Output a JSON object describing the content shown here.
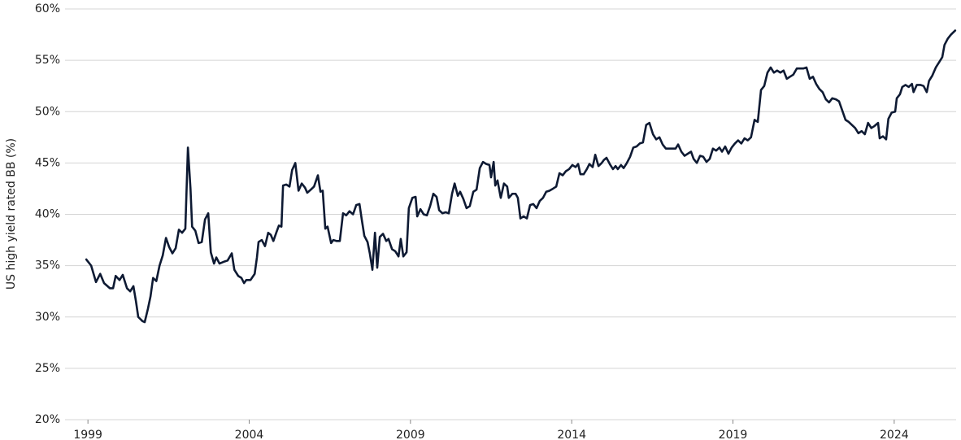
{
  "chart_data": {
    "type": "line",
    "y_label": "US high yield rated BB (%)",
    "color": "#0e1a33",
    "grid": true,
    "xlim": [
      1998.29,
      2025.92
    ],
    "xticks": [
      1999,
      2004,
      2009,
      2014,
      2019,
      2024
    ],
    "ylim": [
      20,
      60
    ],
    "yticks": [
      {
        "value": 20,
        "label": "20%"
      },
      {
        "value": 25,
        "label": "25%"
      },
      {
        "value": 30,
        "label": "30%"
      },
      {
        "value": 35,
        "label": "35%"
      },
      {
        "value": 40,
        "label": "40%"
      },
      {
        "value": 45,
        "label": "45%"
      },
      {
        "value": 50,
        "label": "50%"
      },
      {
        "value": 55,
        "label": "55%"
      },
      {
        "value": 60,
        "label": "60%"
      }
    ],
    "x": [
      1998.95,
      1999.1,
      1999.25,
      1999.38,
      1999.5,
      1999.68,
      1999.78,
      1999.86,
      1999.98,
      2000.08,
      2000.21,
      2000.31,
      2000.41,
      2000.49,
      2000.56,
      2000.69,
      2000.76,
      2000.86,
      2000.94,
      2001.02,
      2001.12,
      2001.22,
      2001.32,
      2001.42,
      2001.52,
      2001.62,
      2001.72,
      2001.82,
      2001.92,
      2002.02,
      2002.1,
      2002.18,
      2002.23,
      2002.33,
      2002.43,
      2002.53,
      2002.63,
      2002.73,
      2002.81,
      2002.91,
      2002.98,
      2003.08,
      2003.23,
      2003.33,
      2003.46,
      2003.54,
      2003.66,
      2003.76,
      2003.84,
      2003.91,
      2004.04,
      2004.17,
      2004.24,
      2004.29,
      2004.39,
      2004.49,
      2004.59,
      2004.67,
      2004.75,
      2004.85,
      2004.92,
      2005.0,
      2005.05,
      2005.15,
      2005.25,
      2005.33,
      2005.43,
      2005.53,
      2005.63,
      2005.73,
      2005.8,
      2005.91,
      2006.01,
      2006.13,
      2006.21,
      2006.28,
      2006.36,
      2006.43,
      2006.54,
      2006.61,
      2006.71,
      2006.81,
      2006.91,
      2007.01,
      2007.11,
      2007.22,
      2007.32,
      2007.42,
      2007.49,
      2007.57,
      2007.67,
      2007.74,
      2007.82,
      2007.9,
      2007.97,
      2008.05,
      2008.15,
      2008.25,
      2008.32,
      2008.43,
      2008.53,
      2008.63,
      2008.7,
      2008.78,
      2008.88,
      2008.95,
      2009.06,
      2009.16,
      2009.21,
      2009.31,
      2009.41,
      2009.51,
      2009.61,
      2009.71,
      2009.81,
      2009.89,
      2009.99,
      2010.09,
      2010.19,
      2010.29,
      2010.37,
      2010.47,
      2010.54,
      2010.64,
      2010.74,
      2010.84,
      2010.95,
      2011.05,
      2011.15,
      2011.25,
      2011.35,
      2011.45,
      2011.5,
      2011.58,
      2011.63,
      2011.7,
      2011.8,
      2011.9,
      2012.0,
      2012.05,
      2012.16,
      2012.26,
      2012.33,
      2012.41,
      2012.51,
      2012.61,
      2012.71,
      2012.81,
      2012.91,
      2013.01,
      2013.11,
      2013.21,
      2013.31,
      2013.42,
      2013.52,
      2013.62,
      2013.72,
      2013.82,
      2013.92,
      2014.02,
      2014.12,
      2014.2,
      2014.27,
      2014.37,
      2014.47,
      2014.55,
      2014.65,
      2014.73,
      2014.83,
      2014.93,
      2015.0,
      2015.08,
      2015.18,
      2015.28,
      2015.36,
      2015.43,
      2015.53,
      2015.61,
      2015.71,
      2015.81,
      2015.91,
      2016.01,
      2016.11,
      2016.21,
      2016.31,
      2016.41,
      2016.52,
      2016.62,
      2016.72,
      2016.82,
      2016.92,
      2017.02,
      2017.12,
      2017.22,
      2017.3,
      2017.4,
      2017.5,
      2017.6,
      2017.7,
      2017.78,
      2017.88,
      2017.98,
      2018.08,
      2018.18,
      2018.28,
      2018.38,
      2018.48,
      2018.58,
      2018.66,
      2018.76,
      2018.86,
      2018.96,
      2019.06,
      2019.16,
      2019.26,
      2019.36,
      2019.46,
      2019.56,
      2019.67,
      2019.77,
      2019.87,
      2019.97,
      2020.07,
      2020.17,
      2020.27,
      2020.37,
      2020.47,
      2020.57,
      2020.67,
      2020.77,
      2020.87,
      2020.98,
      2021.08,
      2021.18,
      2021.28,
      2021.38,
      2021.48,
      2021.58,
      2021.68,
      2021.78,
      2021.88,
      2021.98,
      2022.08,
      2022.19,
      2022.29,
      2022.39,
      2022.49,
      2022.59,
      2022.69,
      2022.79,
      2022.89,
      2022.99,
      2023.09,
      2023.19,
      2023.29,
      2023.39,
      2023.5,
      2023.55,
      2023.65,
      2023.75,
      2023.82,
      2023.92,
      2024.03,
      2024.08,
      2024.18,
      2024.25,
      2024.35,
      2024.45,
      2024.55,
      2024.6,
      2024.7,
      2024.81,
      2024.91,
      2025.01,
      2025.08,
      2025.18,
      2025.29,
      2025.39,
      2025.49,
      2025.56,
      2025.66,
      2025.76,
      2025.89
    ],
    "values": [
      35.6,
      35.0,
      33.4,
      34.2,
      33.3,
      32.8,
      32.8,
      34.0,
      33.6,
      34.1,
      32.8,
      32.5,
      33.0,
      31.5,
      30.0,
      29.6,
      29.5,
      30.8,
      32.0,
      33.8,
      33.5,
      35.0,
      36.0,
      37.7,
      36.8,
      36.2,
      36.7,
      38.5,
      38.2,
      38.6,
      46.5,
      42.5,
      38.8,
      38.4,
      37.2,
      37.3,
      39.5,
      40.1,
      36.3,
      35.2,
      35.8,
      35.2,
      35.4,
      35.5,
      36.2,
      34.6,
      34.0,
      33.8,
      33.3,
      33.6,
      33.6,
      34.2,
      35.8,
      37.3,
      37.5,
      36.9,
      38.2,
      38.0,
      37.4,
      38.3,
      38.9,
      38.8,
      42.8,
      42.9,
      42.7,
      44.3,
      45.0,
      42.3,
      43.0,
      42.6,
      42.1,
      42.4,
      42.7,
      43.8,
      42.2,
      42.3,
      38.6,
      38.8,
      37.2,
      37.5,
      37.4,
      37.4,
      40.1,
      39.9,
      40.3,
      40.0,
      40.9,
      41.0,
      39.5,
      37.9,
      37.3,
      36.2,
      34.6,
      38.2,
      34.8,
      37.8,
      38.1,
      37.4,
      37.6,
      36.6,
      36.4,
      35.9,
      37.6,
      35.9,
      36.3,
      40.6,
      41.6,
      41.7,
      39.8,
      40.5,
      40.0,
      39.9,
      40.8,
      42.0,
      41.7,
      40.4,
      40.1,
      40.2,
      40.1,
      42.0,
      43.0,
      41.8,
      42.2,
      41.5,
      40.6,
      40.8,
      42.2,
      42.4,
      44.5,
      45.1,
      44.9,
      44.8,
      43.6,
      45.1,
      42.8,
      43.3,
      41.6,
      43.0,
      42.7,
      41.6,
      42.0,
      42.0,
      41.6,
      39.6,
      39.8,
      39.6,
      40.9,
      41.0,
      40.6,
      41.3,
      41.6,
      42.2,
      42.3,
      42.5,
      42.7,
      44.0,
      43.8,
      44.2,
      44.4,
      44.8,
      44.6,
      44.9,
      43.9,
      43.9,
      44.4,
      44.9,
      44.6,
      45.8,
      44.7,
      45.0,
      45.3,
      45.5,
      44.9,
      44.4,
      44.7,
      44.4,
      44.8,
      44.5,
      45.0,
      45.6,
      46.5,
      46.6,
      46.9,
      47.0,
      48.7,
      48.9,
      47.8,
      47.3,
      47.5,
      46.8,
      46.4,
      46.4,
      46.4,
      46.4,
      46.8,
      46.1,
      45.7,
      45.9,
      46.1,
      45.4,
      45.0,
      45.7,
      45.6,
      45.1,
      45.4,
      46.4,
      46.2,
      46.5,
      46.1,
      46.6,
      45.9,
      46.5,
      46.9,
      47.2,
      46.9,
      47.4,
      47.2,
      47.5,
      49.2,
      49.0,
      52.1,
      52.5,
      53.8,
      54.3,
      53.8,
      54.0,
      53.8,
      54.0,
      53.2,
      53.4,
      53.6,
      54.2,
      54.2,
      54.2,
      54.3,
      53.2,
      53.4,
      52.7,
      52.2,
      51.9,
      51.2,
      50.9,
      51.3,
      51.2,
      51.0,
      50.1,
      49.2,
      49.0,
      48.7,
      48.4,
      47.9,
      48.1,
      47.8,
      48.9,
      48.4,
      48.6,
      48.9,
      47.4,
      47.6,
      47.3,
      49.3,
      49.9,
      50.0,
      51.3,
      51.7,
      52.4,
      52.6,
      52.4,
      52.7,
      51.9,
      52.6,
      52.6,
      52.5,
      51.9,
      53.0,
      53.5,
      54.3,
      54.8,
      55.3,
      56.5,
      57.1,
      57.5,
      57.9
    ]
  }
}
